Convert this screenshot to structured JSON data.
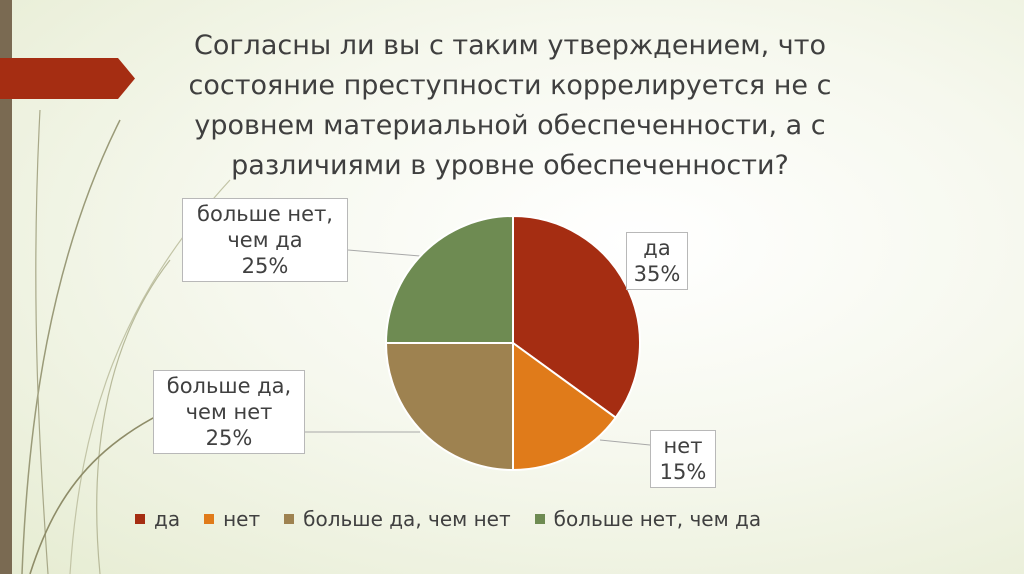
{
  "title_lines": [
    "Согласны ли вы с таким утверждением, что",
    "состояние преступности коррелируется не с",
    "уровнем материальной обеспеченности, а с",
    "различиями в уровне обеспеченности?"
  ],
  "colors": {
    "accent_red": "#a52d12",
    "sidebar": "#7a6a52",
    "deco_stroke": "#9a9a78"
  },
  "chart_data": {
    "type": "pie",
    "title": "Согласны ли вы с таким утверждением, что состояние преступности коррелируется не с уровнем материальной обеспеченности, а с различиями в уровне обеспеченности?",
    "categories": [
      "да",
      "нет",
      "больше да, чем нет",
      "больше нет, чем да"
    ],
    "values": [
      35,
      15,
      25,
      25
    ],
    "value_labels": [
      "35%",
      "15%",
      "25%",
      "25%"
    ],
    "label_lines": [
      [
        "да"
      ],
      [
        "нет"
      ],
      [
        "больше да,",
        "чем нет"
      ],
      [
        "больше нет,",
        "чем да"
      ]
    ],
    "colors": [
      "#a52d12",
      "#e07b1a",
      "#9e8250",
      "#6e8b52"
    ],
    "legend_position": "bottom"
  }
}
